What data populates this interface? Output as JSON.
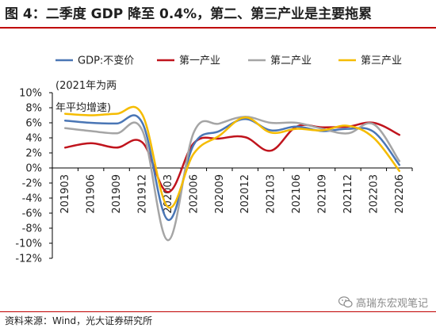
{
  "title": "图 4：二季度 GDP 降至 0.4%，第二、第三产业是主要拖累",
  "source": "资料来源：Wind，光大证券研究所",
  "watermark": "高瑞东宏观笔记",
  "watermark_icon": "wechat-icon",
  "colors": {
    "accent_rule": "#c00000"
  },
  "chart_data": {
    "type": "line",
    "annotation": [
      "(2021年为两",
      "年平均增速)"
    ],
    "y_tick_labels": [
      "10%",
      "8%",
      "6%",
      "4%",
      "2%",
      "0%",
      "-2%",
      "-4%",
      "-6%",
      "-8%",
      "-10%",
      "-12%"
    ],
    "ylim": [
      -12,
      10
    ],
    "x_tick_labels": [
      "201903",
      "201906",
      "201909",
      "201912",
      "202003",
      "202006",
      "202009",
      "202012",
      "202103",
      "202106",
      "202109",
      "202112",
      "202203",
      "202206"
    ],
    "grid": false,
    "legend_position": "top",
    "series": [
      {
        "name": "GDP:不变价",
        "color": "#4a76b5",
        "values": [
          6.3,
          6.0,
          5.9,
          6.0,
          -6.9,
          3.1,
          4.9,
          6.5,
          5.0,
          5.5,
          4.9,
          5.2,
          4.8,
          0.4
        ]
      },
      {
        "name": "第一产业",
        "color": "#c0141d",
        "values": [
          2.7,
          3.3,
          2.7,
          3.4,
          -3.2,
          3.3,
          3.9,
          4.1,
          2.3,
          5.5,
          5.4,
          5.5,
          6.0,
          4.4
        ]
      },
      {
        "name": "第二产业",
        "color": "#a5a5a5",
        "values": [
          5.3,
          4.9,
          4.6,
          5.0,
          -9.6,
          4.7,
          5.9,
          6.8,
          6.0,
          6.0,
          5.2,
          4.6,
          5.8,
          0.9
        ]
      },
      {
        "name": "第三产业",
        "color": "#f5bc00",
        "values": [
          7.2,
          7.0,
          7.2,
          7.1,
          -5.2,
          1.9,
          4.3,
          6.7,
          4.7,
          5.2,
          5.0,
          5.6,
          4.0,
          -0.4
        ]
      }
    ]
  }
}
